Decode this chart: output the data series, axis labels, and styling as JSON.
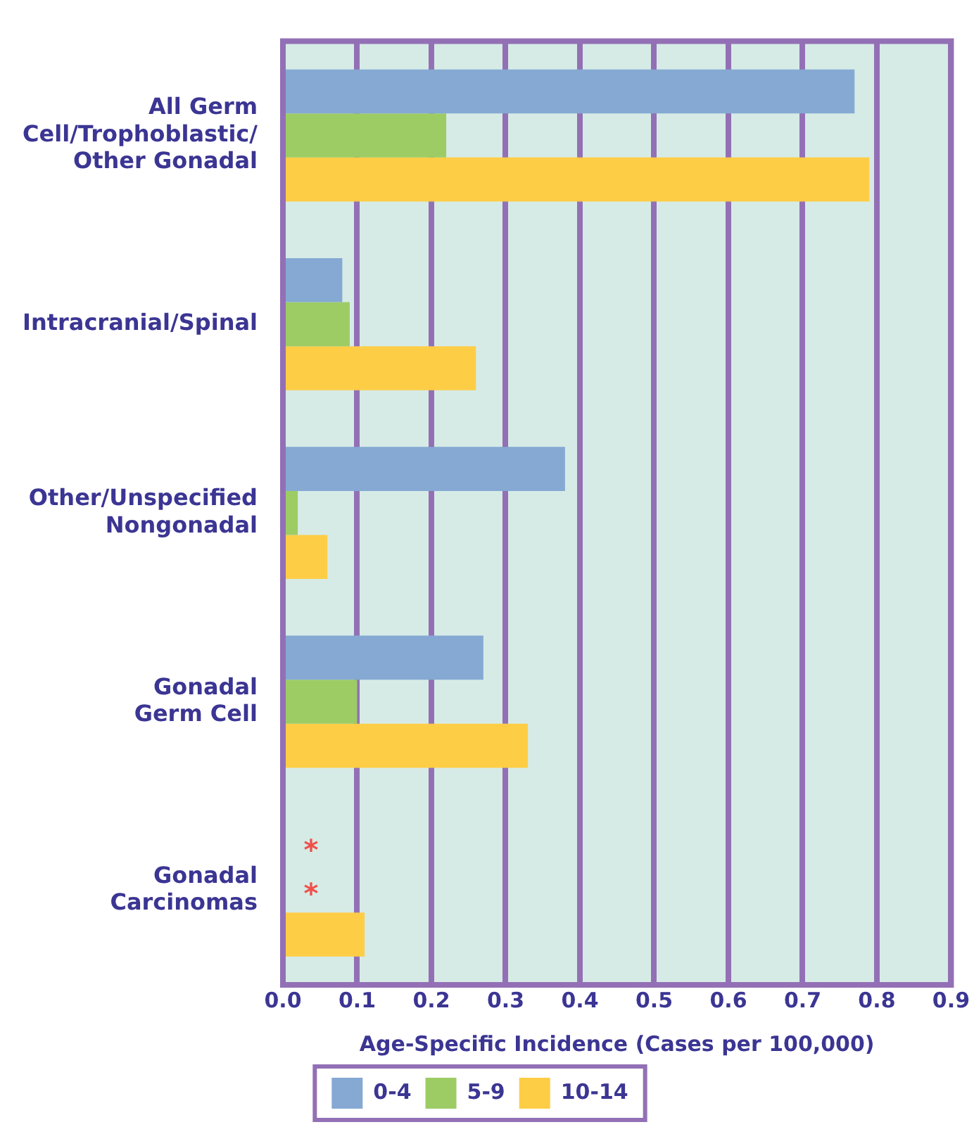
{
  "chart_data": {
    "type": "bar",
    "orientation": "horizontal",
    "xlabel": "Age-Specific Incidence (Cases per 100,000)",
    "categories": [
      "All Germ\nCell/Trophoblastic/\nOther Gonadal",
      "Intracranial/Spinal",
      "Other/Unspecified\nNongonadal",
      "Gonadal\nGerm Cell",
      "Gonadal\nCarcinomas"
    ],
    "series": [
      {
        "name": "0-4",
        "color": "#85a9d3",
        "values": [
          0.77,
          0.08,
          0.38,
          0.27,
          null
        ]
      },
      {
        "name": "5-9",
        "color": "#9dcc65",
        "values": [
          0.22,
          0.09,
          0.02,
          0.1,
          null
        ]
      },
      {
        "name": "10-14",
        "color": "#fecd46",
        "values": [
          0.79,
          0.26,
          0.06,
          0.33,
          0.11
        ]
      }
    ],
    "xlim": [
      0,
      0.9
    ],
    "xticks": [
      {
        "value": 0,
        "label": "0.0"
      },
      0.1,
      0.2,
      0.3,
      0.4,
      0.5,
      0.6,
      0.7,
      0.8,
      0.9
    ],
    "annotations": [
      "*",
      "*"
    ],
    "grid": "x",
    "legend": "bottom"
  }
}
